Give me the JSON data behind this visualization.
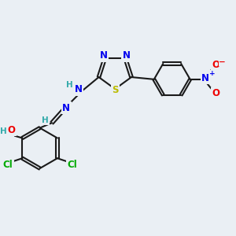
{
  "bg_color": "#eaeff4",
  "bond_color": "#1a1a1a",
  "bond_width": 1.5,
  "atom_colors": {
    "N": "#0000ee",
    "S": "#bbbb00",
    "O": "#ee0000",
    "Cl": "#00aa00",
    "H": "#33aaaa",
    "C": "#1a1a1a"
  },
  "font_size": 8.5,
  "fig_size": [
    3.0,
    3.0
  ],
  "dpi": 100
}
